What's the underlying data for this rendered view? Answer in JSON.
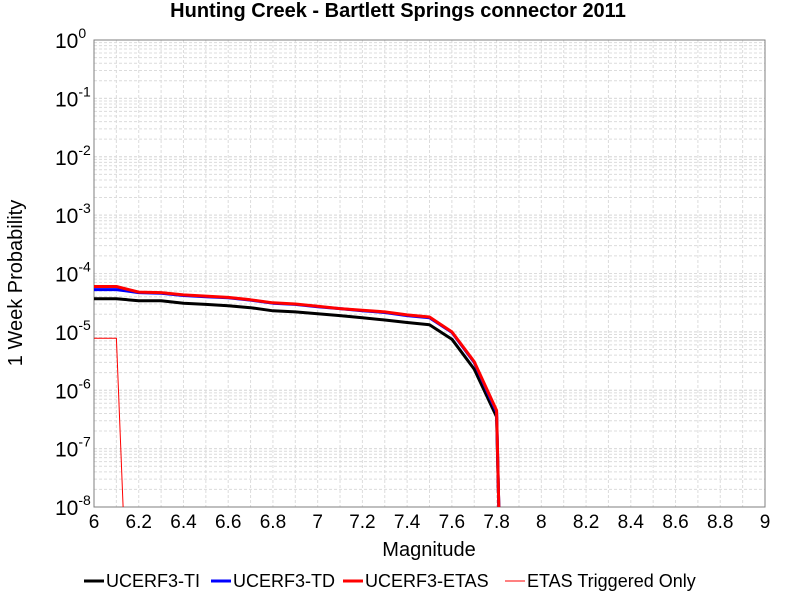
{
  "chart_data": {
    "type": "line",
    "title": "Hunting Creek - Bartlett Springs connector 2011",
    "xlabel": "Magnitude",
    "ylabel": "1 Week Probability",
    "xlim": [
      6,
      9
    ],
    "ylim": [
      1e-08,
      1
    ],
    "yscale": "log",
    "grid": true,
    "legend_placement": "bottom",
    "x_ticks": [
      "6",
      "6.2",
      "6.4",
      "6.6",
      "6.8",
      "7",
      "7.2",
      "7.4",
      "7.6",
      "7.8",
      "8",
      "8.2",
      "8.4",
      "8.6",
      "8.8",
      "9"
    ],
    "y_ticks": [
      {
        "base": "10",
        "exp": "0",
        "value": 1
      },
      {
        "base": "10",
        "exp": "-1",
        "value": 0.1
      },
      {
        "base": "10",
        "exp": "-2",
        "value": 0.01
      },
      {
        "base": "10",
        "exp": "-3",
        "value": 0.001
      },
      {
        "base": "10",
        "exp": "-4",
        "value": 0.0001
      },
      {
        "base": "10",
        "exp": "-5",
        "value": 1e-05
      },
      {
        "base": "10",
        "exp": "-6",
        "value": 1e-06
      },
      {
        "base": "10",
        "exp": "-7",
        "value": 1e-07
      },
      {
        "base": "10",
        "exp": "-8",
        "value": 1e-08
      }
    ],
    "series": [
      {
        "name": "UCERF3-TI",
        "color": "#000000",
        "width": 3,
        "x": [
          6.0,
          6.1,
          6.2,
          6.3,
          6.4,
          6.5,
          6.6,
          6.7,
          6.8,
          6.9,
          7.0,
          7.1,
          7.2,
          7.3,
          7.4,
          7.5,
          7.6,
          7.7,
          7.8,
          7.81
        ],
        "y": [
          3.7e-05,
          3.7e-05,
          3.4e-05,
          3.4e-05,
          3.1e-05,
          2.95e-05,
          2.8e-05,
          2.6e-05,
          2.3e-05,
          2.2e-05,
          2.05e-05,
          1.9e-05,
          1.75e-05,
          1.6e-05,
          1.45e-05,
          1.32e-05,
          7.5e-06,
          2.3e-06,
          3.5e-07,
          1e-08
        ]
      },
      {
        "name": "UCERF3-TD",
        "color": "#0000ff",
        "width": 3,
        "x": [
          6.0,
          6.1,
          6.2,
          6.3,
          6.4,
          6.5,
          6.6,
          6.7,
          6.8,
          6.9,
          7.0,
          7.1,
          7.2,
          7.3,
          7.4,
          7.5,
          7.6,
          7.7,
          7.8,
          7.81
        ],
        "y": [
          5.3e-05,
          5.3e-05,
          4.7e-05,
          4.6e-05,
          4.2e-05,
          4e-05,
          3.85e-05,
          3.5e-05,
          3.1e-05,
          2.95e-05,
          2.7e-05,
          2.5e-05,
          2.3e-05,
          2.15e-05,
          1.9e-05,
          1.75e-05,
          9.8e-06,
          3e-06,
          4.2e-07,
          1e-08
        ]
      },
      {
        "name": "UCERF3-ETAS",
        "color": "#ff0000",
        "width": 3,
        "x": [
          6.0,
          6.1,
          6.2,
          6.3,
          6.4,
          6.5,
          6.6,
          6.7,
          6.8,
          6.9,
          7.0,
          7.1,
          7.2,
          7.3,
          7.4,
          7.5,
          7.6,
          7.7,
          7.8,
          7.81
        ],
        "y": [
          6e-05,
          6e-05,
          4.8e-05,
          4.7e-05,
          4.3e-05,
          4.1e-05,
          3.9e-05,
          3.55e-05,
          3.15e-05,
          3e-05,
          2.75e-05,
          2.5e-05,
          2.35e-05,
          2.2e-05,
          1.95e-05,
          1.8e-05,
          1e-05,
          3.1e-06,
          4.5e-07,
          1e-08
        ]
      },
      {
        "name": "ETAS Triggered Only",
        "color": "#ff0000",
        "width": 1,
        "x": [
          6.0,
          6.1,
          6.13
        ],
        "y": [
          7.8e-06,
          7.8e-06,
          1e-08
        ]
      }
    ]
  }
}
